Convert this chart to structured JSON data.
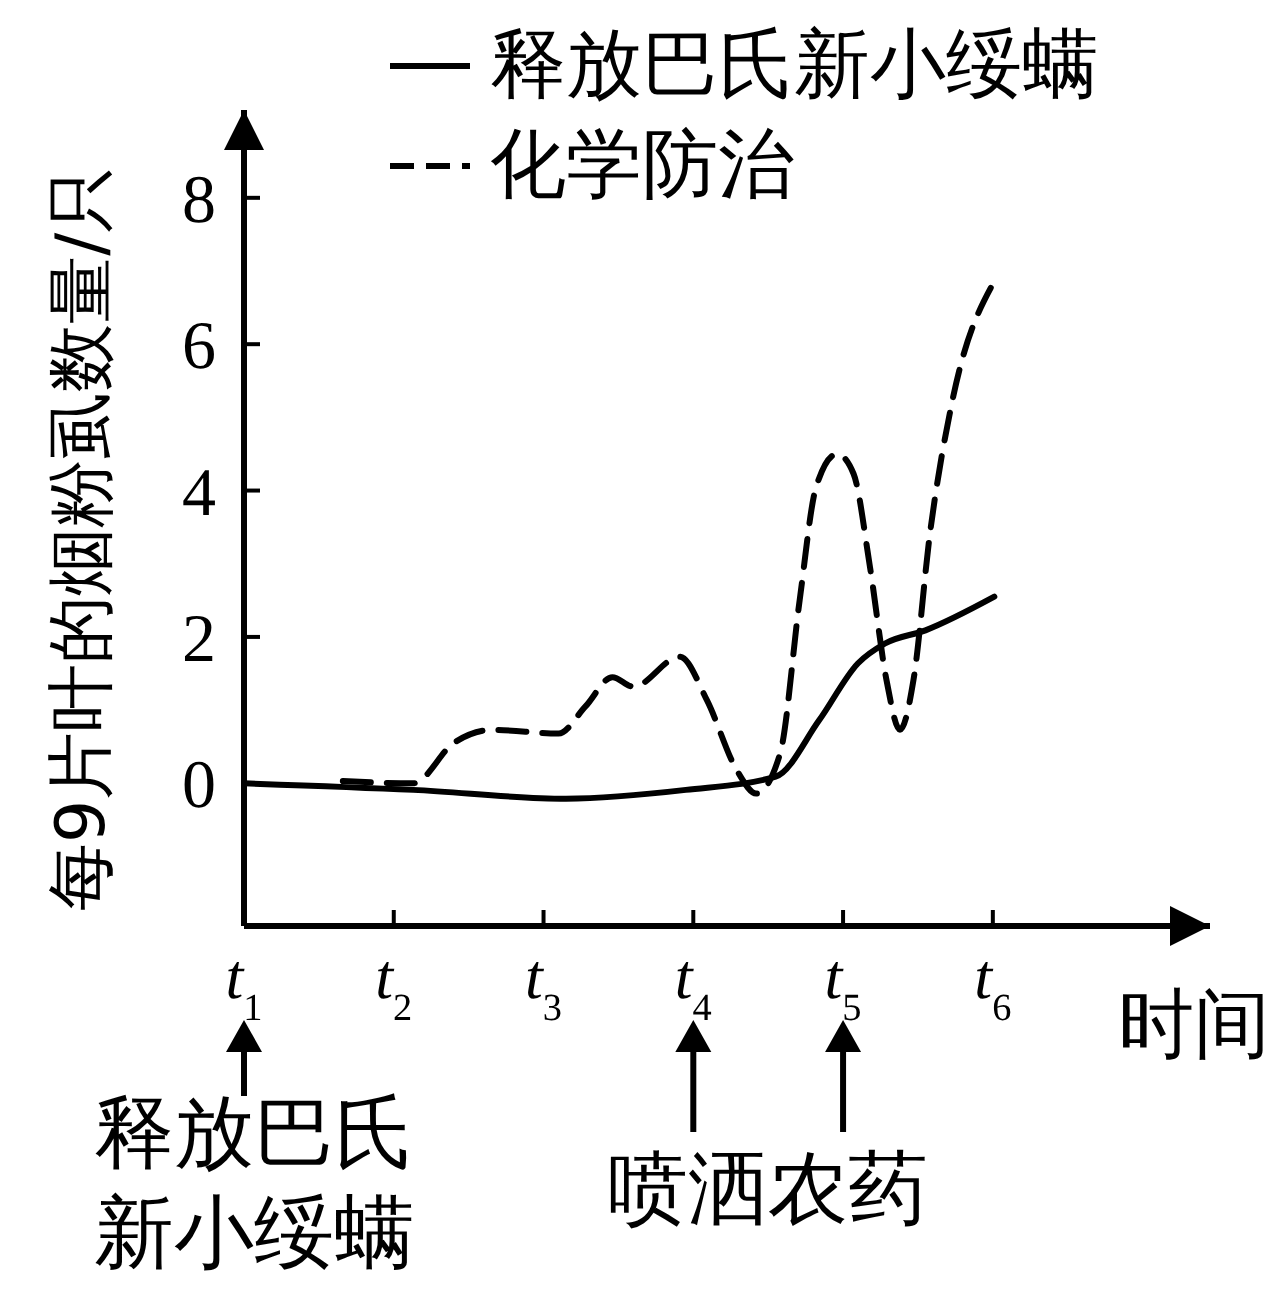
{
  "chart_data": {
    "type": "line",
    "ylabel": "每9片叶的烟粉虱数量/只",
    "xlabel": "时间",
    "xlim": [
      1,
      7.45
    ],
    "ylim": [
      -1.95,
      9.2
    ],
    "xticks": [
      {
        "value": 1,
        "label": "t$_{1}$"
      },
      {
        "value": 2,
        "label": "t$_{2}$"
      },
      {
        "value": 3,
        "label": "t$_{3}$"
      },
      {
        "value": 4,
        "label": "t$_{4}$"
      },
      {
        "value": 5,
        "label": "t$_{5}$"
      },
      {
        "value": 6,
        "label": "t$_{6}$"
      }
    ],
    "yticks": [
      0,
      2,
      4,
      6,
      8
    ],
    "grid": false,
    "legend": "top right",
    "series": [
      {
        "name": "释放巴氏新小绥螨",
        "color": "#000000",
        "line_style": "solid",
        "x": [
          1,
          2.13,
          3.15,
          3.95,
          4.55,
          4.84,
          5.1,
          5.28,
          5.55,
          6.01
        ],
        "values": [
          0,
          -0.09,
          -0.21,
          -0.09,
          0.09,
          0.86,
          1.64,
          1.91,
          2.09,
          2.55
        ]
      },
      {
        "name": "化学防治",
        "color": "#000000",
        "line_style": "dashed",
        "x": [
          1.66,
          2.13,
          2.4,
          2.66,
          3.1,
          3.28,
          3.46,
          3.6,
          3.91,
          4.09,
          4.29,
          4.42,
          4.58,
          4.71,
          4.82,
          4.96,
          5.07,
          5.18,
          5.29,
          5.38,
          5.47,
          5.58,
          5.73,
          6.01
        ],
        "values": [
          0.03,
          0,
          0.55,
          0.73,
          0.68,
          1.05,
          1.45,
          1.32,
          1.73,
          1.14,
          0.18,
          -0.14,
          0.41,
          2.5,
          4.05,
          4.5,
          4.23,
          2.95,
          1.41,
          0.73,
          1.41,
          3.41,
          5.23,
          6.86
        ]
      }
    ],
    "annotations": [
      "释放巴氏新小绥螨",
      "喷洒农药"
    ]
  }
}
